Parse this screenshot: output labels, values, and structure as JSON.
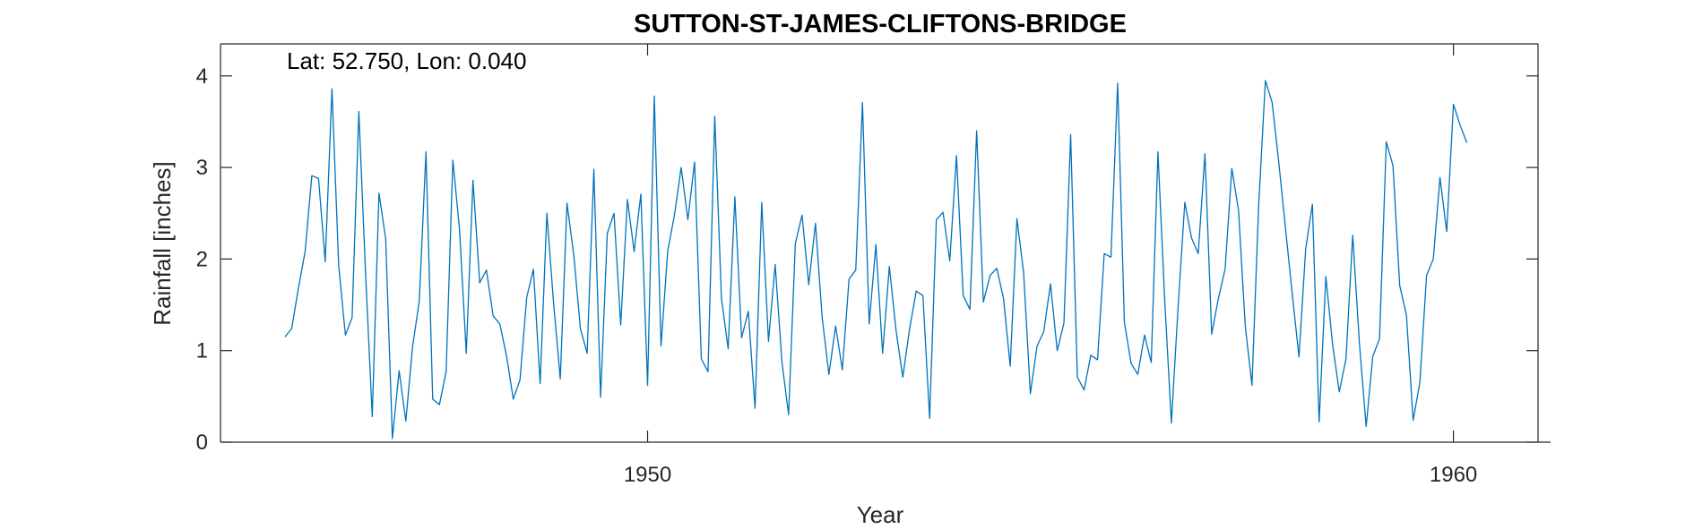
{
  "chart_data": {
    "type": "line",
    "title": "SUTTON-ST-JAMES-CLIFTONS-BRIDGE",
    "annotation": "Lat: 52.750, Lon: 0.040",
    "xlabel": "Year",
    "ylabel": "Rainfall [inches]",
    "xlim": [
      1944.7,
      1961.05
    ],
    "ylim": [
      0,
      4.35
    ],
    "xticks": [
      1950,
      1960
    ],
    "yticks": [
      0,
      1,
      2,
      3,
      4
    ],
    "grid": false,
    "series": [
      {
        "color": "#0072BD",
        "x_start": 1945.5,
        "x_step_months": 1,
        "values": [
          1.15,
          1.24,
          1.68,
          2.08,
          2.91,
          2.88,
          1.97,
          3.86,
          1.93,
          1.17,
          1.36,
          3.61,
          1.85,
          0.28,
          2.72,
          2.22,
          0.04,
          0.78,
          0.23,
          1.04,
          1.54,
          3.17,
          0.47,
          0.41,
          0.77,
          3.08,
          2.32,
          0.97,
          2.86,
          1.74,
          1.88,
          1.38,
          1.29,
          0.94,
          0.47,
          0.68,
          1.58,
          1.89,
          0.64,
          2.5,
          1.52,
          0.69,
          2.61,
          2.05,
          1.24,
          0.97,
          2.98,
          0.49,
          2.28,
          2.5,
          1.28,
          2.65,
          2.08,
          2.71,
          0.62,
          3.78,
          1.05,
          2.09,
          2.48,
          3.0,
          2.43,
          3.06,
          0.91,
          0.77,
          3.56,
          1.57,
          1.02,
          2.68,
          1.14,
          1.43,
          0.37,
          2.62,
          1.1,
          1.94,
          0.88,
          0.3,
          2.17,
          2.48,
          1.72,
          2.39,
          1.36,
          0.74,
          1.27,
          0.79,
          1.78,
          1.88,
          3.71,
          1.29,
          2.16,
          0.97,
          1.92,
          1.22,
          0.71,
          1.23,
          1.65,
          1.6,
          0.26,
          2.43,
          2.51,
          1.98,
          3.13,
          1.6,
          1.45,
          3.4,
          1.53,
          1.82,
          1.9,
          1.57,
          0.83,
          2.44,
          1.85,
          0.53,
          1.05,
          1.21,
          1.73,
          1.0,
          1.3,
          3.36,
          0.71,
          0.57,
          0.95,
          0.9,
          2.06,
          2.02,
          3.92,
          1.31,
          0.86,
          0.74,
          1.17,
          0.87,
          3.17,
          1.56,
          0.21,
          1.48,
          2.62,
          2.23,
          2.06,
          3.15,
          1.18,
          1.57,
          1.89,
          2.99,
          2.53,
          1.27,
          0.62,
          2.59,
          3.95,
          3.71,
          3.05,
          2.33,
          1.62,
          0.93,
          2.11,
          2.6,
          0.22,
          1.81,
          1.07,
          0.55,
          0.91,
          2.26,
          1.08,
          0.17,
          0.94,
          1.13,
          3.28,
          3.02,
          1.71,
          1.39,
          0.24,
          0.65,
          1.82,
          2.0,
          2.89,
          2.3,
          3.69,
          3.46,
          3.27
        ]
      }
    ]
  }
}
